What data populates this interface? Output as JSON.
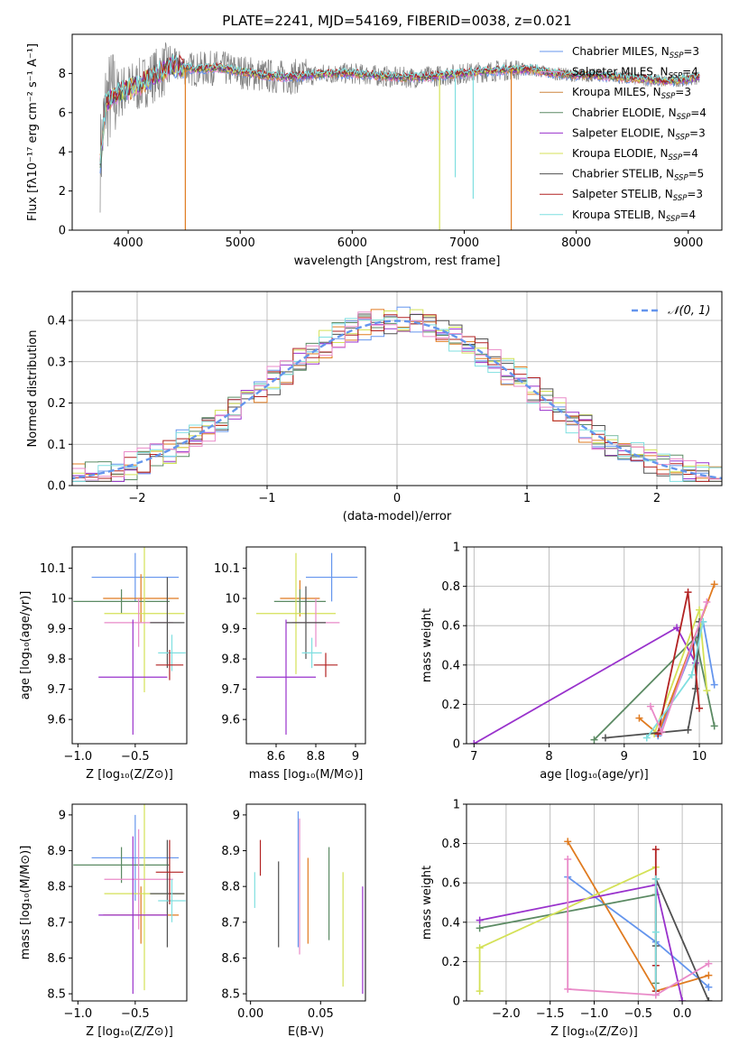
{
  "title": "PLATE=2241, MJD=54169, FIBERID=0038, z=0.021",
  "colors": {
    "cornflower": "#6495ed",
    "orange": "#e07b20",
    "peru": "#cd853f",
    "green": "#5b8a63",
    "purple": "#9932cc",
    "yellowgreen": "#d4e157",
    "gray": "#505050",
    "darkred": "#b22222",
    "cyan": "#7fdfe0",
    "pink": "#e98ac8",
    "grid": "#b0b0b0"
  },
  "chart_data": [
    {
      "id": "spectrum",
      "type": "line",
      "xlabel": "wavelength [Angstrom, rest frame]",
      "ylabel": "Flux [fλ10⁻¹⁷ erg cm⁻² s⁻¹ A⁻¹]",
      "xlim": [
        3500,
        9300
      ],
      "ylim": [
        0,
        10
      ],
      "xticks": [
        4000,
        5000,
        6000,
        7000,
        8000,
        9000
      ],
      "yticks": [
        0,
        2,
        4,
        6,
        8
      ],
      "legend_position": "top-right",
      "legend": [
        {
          "label": "Chabrier MILES, N_SSP=3",
          "color": "#6495ed"
        },
        {
          "label": "Salpeter MILES, N_SSP=4",
          "color": "#e98ac8"
        },
        {
          "label": "Kroupa MILES, N_SSP=3",
          "color": "#cd853f"
        },
        {
          "label": "Chabrier ELODIE, N_SSP=4",
          "color": "#5b8a63"
        },
        {
          "label": "Salpeter ELODIE, N_SSP=3",
          "color": "#9932cc"
        },
        {
          "label": "Kroupa ELODIE, N_SSP=4",
          "color": "#d4e157"
        },
        {
          "label": "Chabrier STELIB, N_SSP=5",
          "color": "#505050"
        },
        {
          "label": "Salpeter STELIB, N_SSP=3",
          "color": "#b22222"
        },
        {
          "label": "Kroupa STELIB, N_SSP=4",
          "color": "#7fdfe0"
        }
      ],
      "continuum": [
        [
          3750,
          3.5
        ],
        [
          3800,
          6.5
        ],
        [
          3900,
          7.0
        ],
        [
          4000,
          7.2
        ],
        [
          4100,
          7.4
        ],
        [
          4200,
          7.8
        ],
        [
          4400,
          8.4
        ],
        [
          4600,
          8.2
        ],
        [
          4800,
          8.3
        ],
        [
          5000,
          8.1
        ],
        [
          5200,
          7.9
        ],
        [
          5400,
          7.8
        ],
        [
          5600,
          7.9
        ],
        [
          5800,
          8.0
        ],
        [
          6000,
          8.0
        ],
        [
          6200,
          7.9
        ],
        [
          6400,
          7.8
        ],
        [
          6600,
          7.8
        ],
        [
          6800,
          7.9
        ],
        [
          7000,
          8.0
        ],
        [
          7200,
          8.1
        ],
        [
          7400,
          8.2
        ],
        [
          7600,
          8.2
        ],
        [
          7800,
          8.0
        ],
        [
          8000,
          7.9
        ],
        [
          8200,
          7.9
        ],
        [
          8400,
          7.8
        ],
        [
          8600,
          7.7
        ],
        [
          8800,
          7.6
        ],
        [
          9000,
          7.7
        ],
        [
          9100,
          7.8
        ]
      ],
      "dips": [
        {
          "x": 4510,
          "y": 0,
          "color": "#e07b20"
        },
        {
          "x": 6780,
          "y": 0,
          "color": "#d4e157"
        },
        {
          "x": 7420,
          "y": 0,
          "color": "#e07b20"
        },
        {
          "x": 6920,
          "y": 2.7,
          "color": "#7fdfe0"
        },
        {
          "x": 7080,
          "y": 1.6,
          "color": "#7fdfe0"
        }
      ]
    },
    {
      "id": "residual-histogram",
      "type": "line",
      "xlabel": "(data-model)/error",
      "ylabel": "Normed distribution",
      "xlim": [
        -2.5,
        2.5
      ],
      "ylim": [
        0,
        0.47
      ],
      "xticks": [
        -2,
        -1,
        0,
        1,
        2
      ],
      "xtick_labels": [
        "−2",
        "−1",
        "0",
        "1",
        "2"
      ],
      "yticks": [
        0.0,
        0.1,
        0.2,
        0.3,
        0.4
      ],
      "ytick_labels": [
        "0.0",
        "0.1",
        "0.2",
        "0.3",
        "0.4"
      ],
      "legend_position": "top-right",
      "legend": [
        {
          "label": "𝒩(0, 1)",
          "color": "#6495ed",
          "dashed": true
        }
      ],
      "bin_width": 0.1,
      "grid": true
    },
    {
      "id": "age-vs-Z",
      "type": "scatter",
      "xlabel": "Z [log₁₀(Z/Z⊙)]",
      "ylabel": "age  [log₁₀(age/yr)]",
      "xlim": [
        -1.05,
        -0.05
      ],
      "ylim": [
        9.52,
        10.17
      ],
      "xticks": [
        -1.0,
        -0.5
      ],
      "xtick_labels": [
        "−1.0",
        "−0.5"
      ],
      "yticks": [
        9.6,
        9.7,
        9.8,
        9.9,
        10.0,
        10.1
      ],
      "points": [
        {
          "x": -0.5,
          "y": 10.07,
          "xerr": 0.38,
          "yerr": 0.08,
          "color": "#6495ed"
        },
        {
          "x": -0.45,
          "y": 10.0,
          "xerr": 0.33,
          "yerr": 0.08,
          "color": "#e07b20"
        },
        {
          "x": -0.62,
          "y": 9.99,
          "xerr": 0.42,
          "yerr": 0.04,
          "color": "#5b8a63"
        },
        {
          "x": -0.42,
          "y": 9.95,
          "xerr": 0.35,
          "yerr": 0.26,
          "color": "#d4e157"
        },
        {
          "x": -0.47,
          "y": 9.92,
          "xerr": 0.3,
          "yerr": 0.08,
          "color": "#e98ac8"
        },
        {
          "x": -0.22,
          "y": 9.92,
          "xerr": 0.15,
          "yerr": 0.15,
          "color": "#505050"
        },
        {
          "x": -0.52,
          "y": 9.74,
          "xerr": 0.3,
          "yerr": 0.19,
          "color": "#9932cc"
        },
        {
          "x": -0.18,
          "y": 9.82,
          "xerr": 0.12,
          "yerr": 0.06,
          "color": "#7fdfe0"
        },
        {
          "x": -0.2,
          "y": 9.78,
          "xerr": 0.12,
          "yerr": 0.05,
          "color": "#b22222"
        }
      ]
    },
    {
      "id": "age-vs-mass",
      "type": "scatter",
      "xlabel": "mass [log₁₀(M/M⊙)]",
      "ylabel": "",
      "xlim": [
        8.45,
        9.05
      ],
      "ylim": [
        9.52,
        10.17
      ],
      "xticks": [
        8.6,
        8.8,
        9.0
      ],
      "yticks": [
        9.6,
        9.7,
        9.8,
        9.9,
        10.0,
        10.1
      ],
      "points": [
        {
          "x": 8.88,
          "y": 10.07,
          "xerr": 0.13,
          "yerr": 0.08,
          "color": "#6495ed"
        },
        {
          "x": 8.72,
          "y": 10.0,
          "xerr": 0.1,
          "yerr": 0.06,
          "color": "#e07b20"
        },
        {
          "x": 8.72,
          "y": 9.99,
          "xerr": 0.13,
          "yerr": 0.04,
          "color": "#5b8a63"
        },
        {
          "x": 8.7,
          "y": 9.95,
          "xerr": 0.2,
          "yerr": 0.2,
          "color": "#d4e157"
        },
        {
          "x": 8.8,
          "y": 9.92,
          "xerr": 0.12,
          "yerr": 0.08,
          "color": "#e98ac8"
        },
        {
          "x": 8.75,
          "y": 9.92,
          "xerr": 0.1,
          "yerr": 0.12,
          "color": "#505050"
        },
        {
          "x": 8.65,
          "y": 9.74,
          "xerr": 0.15,
          "yerr": 0.19,
          "color": "#9932cc"
        },
        {
          "x": 8.78,
          "y": 9.82,
          "xerr": 0.05,
          "yerr": 0.05,
          "color": "#7fdfe0"
        },
        {
          "x": 8.85,
          "y": 9.78,
          "xerr": 0.06,
          "yerr": 0.04,
          "color": "#b22222"
        }
      ]
    },
    {
      "id": "weight-vs-age",
      "type": "line",
      "xlabel": "age  [log₁₀(age/yr)]",
      "ylabel": "mass weight",
      "xlim": [
        6.9,
        10.3
      ],
      "ylim": [
        0,
        1
      ],
      "xticks": [
        7,
        8,
        9,
        10
      ],
      "yticks": [
        0.0,
        0.2,
        0.4,
        0.6,
        0.8,
        1.0
      ],
      "grid": true,
      "series": [
        {
          "color": "#6495ed",
          "points": [
            [
              9.45,
              0.04
            ],
            [
              10.05,
              0.62
            ],
            [
              10.2,
              0.3
            ]
          ]
        },
        {
          "color": "#e07b20",
          "points": [
            [
              9.2,
              0.13
            ],
            [
              9.45,
              0.05
            ],
            [
              10.2,
              0.81
            ]
          ]
        },
        {
          "color": "#5b8a63",
          "points": [
            [
              8.6,
              0.02
            ],
            [
              9.95,
              0.54
            ],
            [
              10.2,
              0.09
            ]
          ]
        },
        {
          "color": "#9932cc",
          "points": [
            [
              7.0,
              0.0
            ],
            [
              9.7,
              0.59
            ],
            [
              9.95,
              0.41
            ]
          ]
        },
        {
          "color": "#d4e157",
          "points": [
            [
              9.4,
              0.05
            ],
            [
              10.0,
              0.68
            ],
            [
              10.1,
              0.27
            ]
          ]
        },
        {
          "color": "#505050",
          "points": [
            [
              8.75,
              0.03
            ],
            [
              9.85,
              0.07
            ],
            [
              9.95,
              0.28
            ],
            [
              10.0,
              0.62
            ]
          ]
        },
        {
          "color": "#b22222",
          "points": [
            [
              9.45,
              0.05
            ],
            [
              9.85,
              0.77
            ],
            [
              10.0,
              0.18
            ]
          ]
        },
        {
          "color": "#7fdfe0",
          "points": [
            [
              9.3,
              0.03
            ],
            [
              9.9,
              0.35
            ],
            [
              10.05,
              0.62
            ]
          ]
        },
        {
          "color": "#e98ac8",
          "points": [
            [
              9.35,
              0.19
            ],
            [
              9.5,
              0.06
            ],
            [
              10.1,
              0.72
            ]
          ]
        }
      ]
    },
    {
      "id": "mass-vs-Z",
      "type": "scatter",
      "xlabel": "Z [log₁₀(Z/Z⊙)]",
      "ylabel": "mass [log₁₀(M/M⊙)]",
      "xlim": [
        -1.05,
        -0.05
      ],
      "ylim": [
        8.48,
        9.03
      ],
      "xticks": [
        -1.0,
        -0.5
      ],
      "xtick_labels": [
        "−1.0",
        "−0.5"
      ],
      "yticks": [
        8.5,
        8.6,
        8.7,
        8.8,
        8.9,
        9.0
      ],
      "points": [
        {
          "x": -0.5,
          "y": 8.88,
          "xerr": 0.38,
          "yerr": 0.12,
          "color": "#6495ed"
        },
        {
          "x": -0.45,
          "y": 8.72,
          "xerr": 0.33,
          "yerr": 0.08,
          "color": "#e07b20"
        },
        {
          "x": -0.62,
          "y": 8.86,
          "xerr": 0.42,
          "yerr": 0.05,
          "color": "#5b8a63"
        },
        {
          "x": -0.42,
          "y": 8.78,
          "xerr": 0.35,
          "yerr": 0.27,
          "color": "#d4e157"
        },
        {
          "x": -0.47,
          "y": 8.82,
          "xerr": 0.3,
          "yerr": 0.14,
          "color": "#e98ac8"
        },
        {
          "x": -0.22,
          "y": 8.78,
          "xerr": 0.15,
          "yerr": 0.15,
          "color": "#505050"
        },
        {
          "x": -0.52,
          "y": 8.72,
          "xerr": 0.3,
          "yerr": 0.22,
          "color": "#9932cc"
        },
        {
          "x": -0.18,
          "y": 8.76,
          "xerr": 0.12,
          "yerr": 0.06,
          "color": "#7fdfe0"
        },
        {
          "x": -0.2,
          "y": 8.84,
          "xerr": 0.12,
          "yerr": 0.09,
          "color": "#b22222"
        }
      ]
    },
    {
      "id": "mass-vs-EBV",
      "type": "scatter",
      "xlabel": "E(B-V)",
      "ylabel": "",
      "xlim": [
        -0.003,
        0.082
      ],
      "ylim": [
        8.48,
        9.03
      ],
      "xticks": [
        0.0,
        0.05
      ],
      "xtick_labels": [
        "0.00",
        "0.05"
      ],
      "yticks": [
        8.5,
        8.6,
        8.7,
        8.8,
        8.9,
        9.0
      ],
      "points": [
        {
          "x": 0.003,
          "y": 8.79,
          "yerr": 0.05,
          "color": "#7fdfe0"
        },
        {
          "x": 0.007,
          "y": 8.88,
          "yerr": 0.05,
          "color": "#b22222"
        },
        {
          "x": 0.02,
          "y": 8.75,
          "yerr": 0.12,
          "color": "#505050"
        },
        {
          "x": 0.034,
          "y": 8.82,
          "yerr": 0.19,
          "color": "#6495ed"
        },
        {
          "x": 0.035,
          "y": 8.8,
          "yerr": 0.19,
          "color": "#e98ac8"
        },
        {
          "x": 0.041,
          "y": 8.76,
          "yerr": 0.12,
          "color": "#e07b20"
        },
        {
          "x": 0.056,
          "y": 8.78,
          "yerr": 0.13,
          "color": "#5b8a63"
        },
        {
          "x": 0.066,
          "y": 8.68,
          "yerr": 0.16,
          "color": "#d4e157"
        },
        {
          "x": 0.08,
          "y": 8.65,
          "yerr": 0.15,
          "color": "#9932cc"
        }
      ]
    },
    {
      "id": "weight-vs-Z",
      "type": "line",
      "xlabel": "Z [log₁₀(Z/Z⊙)]",
      "ylabel": "mass weight",
      "xlim": [
        -2.45,
        0.45
      ],
      "ylim": [
        0,
        1
      ],
      "xticks": [
        -2.0,
        -1.5,
        -1.0,
        -0.5,
        0.0
      ],
      "xtick_labels": [
        "−2.0",
        "−1.5",
        "−1.0",
        "−0.5",
        "0.0"
      ],
      "yticks": [
        0.0,
        0.2,
        0.4,
        0.6,
        0.8,
        1.0
      ],
      "grid": true,
      "series": [
        {
          "color": "#6495ed",
          "points": [
            [
              -1.3,
              0.63
            ],
            [
              -0.3,
              0.3
            ],
            [
              0.3,
              0.07
            ]
          ]
        },
        {
          "color": "#e07b20",
          "points": [
            [
              -1.3,
              0.81
            ],
            [
              -0.3,
              0.05
            ],
            [
              0.3,
              0.13
            ]
          ]
        },
        {
          "color": "#5b8a63",
          "points": [
            [
              -2.3,
              0.37
            ],
            [
              -0.3,
              0.54
            ],
            [
              -0.3,
              0.09
            ]
          ]
        },
        {
          "color": "#9932cc",
          "points": [
            [
              -2.3,
              0.41
            ],
            [
              -0.3,
              0.59
            ],
            [
              0.0,
              0.0
            ]
          ]
        },
        {
          "color": "#d4e157",
          "points": [
            [
              -2.3,
              0.05
            ],
            [
              -2.3,
              0.27
            ],
            [
              -0.3,
              0.68
            ]
          ]
        },
        {
          "color": "#505050",
          "points": [
            [
              -0.3,
              0.28
            ],
            [
              -0.3,
              0.62
            ],
            [
              0.3,
              0.0
            ]
          ]
        },
        {
          "color": "#b22222",
          "points": [
            [
              -0.3,
              0.05
            ],
            [
              -0.3,
              0.77
            ],
            [
              -0.3,
              0.18
            ]
          ]
        },
        {
          "color": "#7fdfe0",
          "points": [
            [
              -0.3,
              0.03
            ],
            [
              -0.3,
              0.35
            ],
            [
              -0.3,
              0.62
            ]
          ]
        },
        {
          "color": "#e98ac8",
          "points": [
            [
              -1.3,
              0.72
            ],
            [
              -1.3,
              0.06
            ],
            [
              -0.3,
              0.03
            ],
            [
              0.3,
              0.19
            ]
          ]
        }
      ]
    }
  ]
}
